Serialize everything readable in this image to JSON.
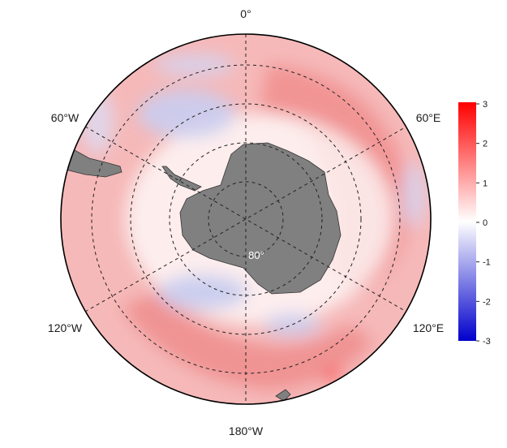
{
  "map": {
    "projection": "south-polar-stereographic",
    "longitude_labels": {
      "top": "0°",
      "upper_right": "60°E",
      "lower_right": "120°E",
      "bottom": "180°W",
      "lower_left": "120°W",
      "upper_left": "60°W"
    },
    "latitude_label": "80°",
    "land_color": "#808080",
    "graticule": "dashed"
  },
  "colorbar": {
    "ticks": [
      "3",
      "2",
      "1",
      "0",
      "-1",
      "-2",
      "-3"
    ],
    "min": -3,
    "max": 3,
    "colors": {
      "low": "#0000cc",
      "mid": "#ffffff",
      "high": "#ff0000"
    }
  }
}
